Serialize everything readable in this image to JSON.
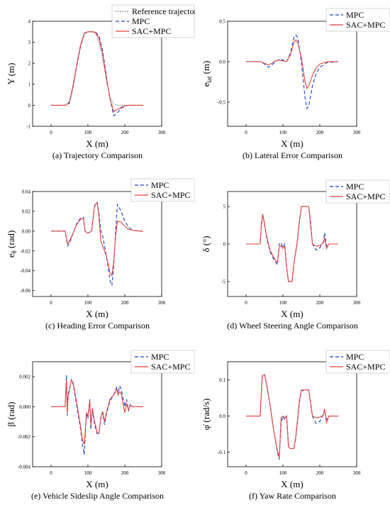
{
  "colors": {
    "reference": "#555555",
    "mpc": "#1f3fd6",
    "sac": "#e8413a"
  },
  "chart_data": [
    {
      "type": "line",
      "caption": "(a) Trajectory Comparison",
      "xlabel": "X (m)",
      "ylabel": "Y (m)",
      "xlim": [
        -50,
        300
      ],
      "ylim": [
        -1,
        4
      ],
      "xticks": [
        0,
        100,
        200,
        300
      ],
      "xtick_labels": [
        "0",
        "100",
        "200",
        "300"
      ],
      "yticks": [
        -1,
        0,
        1,
        2,
        3,
        4
      ],
      "ytick_labels": [
        "-1",
        "0",
        "1",
        "2",
        "3",
        "4"
      ],
      "legend": "top-right",
      "series": [
        {
          "name": "Reference trajectory",
          "style": "dotted",
          "color": "#555555",
          "x": [
            0,
            40,
            50,
            60,
            70,
            80,
            90,
            100,
            110,
            120,
            130,
            140,
            150,
            160,
            170,
            180,
            200,
            250
          ],
          "y": [
            0,
            0,
            0.2,
            1.0,
            2.0,
            2.9,
            3.45,
            3.5,
            3.5,
            3.45,
            3.0,
            2.2,
            1.2,
            0.4,
            0.05,
            0,
            0,
            0
          ]
        },
        {
          "name": "MPC",
          "style": "dashed",
          "color": "#1f3fd6",
          "x": [
            0,
            40,
            50,
            60,
            70,
            80,
            90,
            100,
            110,
            120,
            130,
            140,
            150,
            160,
            170,
            180,
            190,
            200,
            210,
            250
          ],
          "y": [
            0,
            0,
            0.1,
            0.9,
            1.9,
            2.8,
            3.4,
            3.5,
            3.5,
            3.5,
            3.3,
            2.6,
            1.4,
            0.3,
            -0.5,
            -0.35,
            -0.15,
            -0.05,
            0,
            0
          ]
        },
        {
          "name": "SAC+MPC",
          "style": "solid",
          "color": "#e8413a",
          "x": [
            0,
            40,
            50,
            60,
            70,
            80,
            90,
            100,
            110,
            120,
            130,
            140,
            150,
            160,
            170,
            180,
            190,
            200,
            210,
            250
          ],
          "y": [
            0,
            0,
            0.15,
            0.95,
            1.95,
            2.85,
            3.42,
            3.5,
            3.5,
            3.48,
            3.2,
            2.45,
            1.3,
            0.3,
            -0.3,
            -0.2,
            -0.1,
            -0.03,
            0,
            0
          ]
        }
      ]
    },
    {
      "type": "line",
      "caption": "(b) Lateral Error Comparison",
      "xlabel": "X (m)",
      "ylabel": "e_lat (m)",
      "ylabel_main": "e",
      "ylabel_sub": "lat",
      "ylabel_unit": " (m)",
      "xlim": [
        -50,
        300
      ],
      "ylim": [
        -0.8,
        0.5
      ],
      "xticks": [
        0,
        100,
        200,
        300
      ],
      "xtick_labels": [
        "0",
        "100",
        "200",
        "300"
      ],
      "yticks": [
        -0.5,
        0,
        0.5
      ],
      "ytick_labels": [
        "-0.5",
        "0.0",
        "0.5"
      ],
      "legend": "top-right",
      "series": [
        {
          "name": "MPC",
          "style": "dashed",
          "color": "#1f3fd6",
          "x": [
            0,
            40,
            50,
            60,
            70,
            80,
            90,
            100,
            110,
            120,
            130,
            135,
            140,
            150,
            160,
            165,
            170,
            180,
            190,
            200,
            220,
            250
          ],
          "y": [
            0,
            0,
            -0.03,
            -0.07,
            -0.04,
            0.0,
            0.03,
            0.02,
            0.0,
            0.1,
            0.3,
            0.33,
            0.3,
            0.0,
            -0.45,
            -0.58,
            -0.55,
            -0.3,
            -0.15,
            -0.07,
            -0.01,
            0
          ]
        },
        {
          "name": "SAC+MPC",
          "style": "solid",
          "color": "#e8413a",
          "x": [
            0,
            40,
            50,
            60,
            70,
            80,
            90,
            100,
            110,
            120,
            130,
            135,
            140,
            150,
            160,
            165,
            170,
            180,
            190,
            200,
            220,
            250
          ],
          "y": [
            0,
            0,
            -0.02,
            -0.04,
            -0.02,
            0.01,
            0.02,
            0.01,
            0.0,
            0.08,
            0.24,
            0.27,
            0.24,
            0.05,
            -0.25,
            -0.33,
            -0.3,
            -0.17,
            -0.08,
            -0.03,
            0,
            0
          ]
        }
      ]
    },
    {
      "type": "line",
      "caption": "(c) Heading Error Comparison",
      "xlabel": "X (m)",
      "ylabel": "e_θ (rad)",
      "ylabel_main": "e",
      "ylabel_sub": "θ",
      "ylabel_unit": " (rad)",
      "xlim": [
        -50,
        300
      ],
      "ylim": [
        -0.066,
        0.04
      ],
      "xticks": [
        0,
        100,
        200,
        300
      ],
      "xtick_labels": [
        "0",
        "100",
        "200",
        "300"
      ],
      "yticks": [
        -0.06,
        -0.04,
        -0.02,
        0,
        0.02,
        0.04
      ],
      "ytick_labels": [
        "-0.06",
        "-0.04",
        "-0.02",
        "0.00",
        "0.02",
        "0.04"
      ],
      "legend": "top-right",
      "series": [
        {
          "name": "MPC",
          "style": "dashed",
          "color": "#1f3fd6",
          "x": [
            0,
            38,
            45,
            50,
            60,
            70,
            80,
            88,
            92,
            100,
            110,
            118,
            125,
            130,
            135,
            140,
            150,
            160,
            165,
            170,
            175,
            180,
            190,
            200,
            210,
            220,
            240,
            250
          ],
          "y": [
            0,
            0,
            -0.015,
            -0.012,
            -0.002,
            0.008,
            0.013,
            0.014,
            0.0,
            -0.002,
            0.0,
            0.025,
            0.029,
            0.018,
            0.0,
            -0.005,
            -0.025,
            -0.05,
            -0.055,
            -0.035,
            0.0,
            0.027,
            0.02,
            0.01,
            0.004,
            0.001,
            0,
            0
          ]
        },
        {
          "name": "SAC+MPC",
          "style": "solid",
          "color": "#e8413a",
          "x": [
            0,
            38,
            45,
            50,
            60,
            70,
            80,
            88,
            92,
            100,
            110,
            118,
            125,
            130,
            135,
            140,
            150,
            160,
            165,
            170,
            175,
            180,
            190,
            200,
            210,
            220,
            240,
            250
          ],
          "y": [
            0,
            0,
            -0.013,
            -0.01,
            -0.002,
            0.007,
            0.012,
            0.013,
            0.0,
            -0.002,
            0.0,
            0.026,
            0.029,
            0.015,
            -0.01,
            -0.015,
            -0.025,
            -0.042,
            -0.045,
            -0.03,
            -0.005,
            0.01,
            0.009,
            0.005,
            0.002,
            0.001,
            0,
            0
          ]
        }
      ]
    },
    {
      "type": "line",
      "caption": "(d) Wheel Steering Angle Comparison",
      "xlabel": "X (m)",
      "ylabel": "δ (°)",
      "xlim": [
        -50,
        300
      ],
      "ylim": [
        -7,
        7
      ],
      "xticks": [
        0,
        100,
        200,
        300
      ],
      "xtick_labels": [
        "0",
        "100",
        "200",
        "300"
      ],
      "yticks": [
        -5,
        0,
        5
      ],
      "ytick_labels": [
        "-5",
        "0",
        "5"
      ],
      "legend": "top-right",
      "series": [
        {
          "name": "MPC",
          "style": "dashed",
          "color": "#1f3fd6",
          "x": [
            0,
            38,
            42,
            45,
            48,
            55,
            65,
            75,
            85,
            90,
            95,
            100,
            105,
            110,
            115,
            120,
            125,
            130,
            138,
            145,
            150,
            160,
            170,
            175,
            180,
            190,
            200,
            210,
            213,
            218,
            225,
            250
          ],
          "y": [
            0,
            0,
            2.5,
            3.8,
            3.2,
            1.0,
            -1.0,
            -2.0,
            -2.8,
            0.0,
            0.2,
            -0.5,
            0.0,
            -3.0,
            -5.0,
            -5.0,
            -5.0,
            -2.5,
            0.0,
            3.0,
            5.0,
            5.0,
            5.0,
            3.0,
            0.0,
            -0.8,
            -0.5,
            0.3,
            1.5,
            -0.3,
            0,
            0
          ]
        },
        {
          "name": "SAC+MPC",
          "style": "solid",
          "color": "#e8413a",
          "x": [
            0,
            38,
            42,
            45,
            48,
            55,
            65,
            75,
            85,
            90,
            95,
            100,
            105,
            110,
            115,
            120,
            125,
            130,
            138,
            145,
            150,
            160,
            170,
            175,
            180,
            190,
            200,
            210,
            213,
            218,
            225,
            250
          ],
          "y": [
            0,
            0,
            2.8,
            4.0,
            3.3,
            1.2,
            -0.8,
            -1.8,
            -2.5,
            -0.5,
            -0.2,
            -0.6,
            -0.3,
            -3.2,
            -5.0,
            -5.0,
            -5.0,
            -2.5,
            0.0,
            3.2,
            5.0,
            5.0,
            5.0,
            2.5,
            0.0,
            -0.3,
            -0.2,
            0.2,
            0.8,
            -0.6,
            0,
            0
          ]
        }
      ]
    },
    {
      "type": "line",
      "caption": "(e) Vehicle Sideslip Angle Comparison",
      "xlabel": "X (m)",
      "ylabel": "β (rad)",
      "xlim": [
        -50,
        300
      ],
      "ylim": [
        -0.004,
        0.003
      ],
      "xticks": [
        0,
        100,
        200,
        300
      ],
      "xtick_labels": [
        "0",
        "100",
        "200",
        "300"
      ],
      "yticks": [
        -0.004,
        -0.002,
        0,
        0.002
      ],
      "ytick_labels": [
        "-0.004",
        "-0.002",
        "0.000",
        "0.002"
      ],
      "legend": "top-right",
      "series": [
        {
          "name": "MPC",
          "style": "dashed",
          "color": "#1f3fd6",
          "x": [
            0,
            38,
            42,
            44,
            46,
            50,
            55,
            60,
            70,
            80,
            85,
            90,
            93,
            96,
            100,
            105,
            108,
            112,
            118,
            125,
            130,
            135,
            140,
            145,
            150,
            160,
            170,
            175,
            178,
            182,
            186,
            190,
            200,
            205,
            210,
            215,
            220,
            250
          ],
          "y": [
            0,
            0,
            0.0021,
            -0.0006,
            0.0008,
            0.0012,
            0.0018,
            0.0015,
            0.0,
            -0.0015,
            -0.0025,
            -0.0032,
            -0.0018,
            -0.0005,
            -0.0008,
            0.0005,
            -0.0015,
            -0.0002,
            -0.0012,
            -0.0018,
            -0.0017,
            -0.0008,
            -0.0004,
            -0.0012,
            -0.0005,
            0.0004,
            0.0008,
            0.0011,
            0.0013,
            0.0009,
            0.0014,
            0.0012,
            0.0,
            0.0005,
            -0.0003,
            0.0002,
            0,
            0
          ]
        },
        {
          "name": "SAC+MPC",
          "style": "solid",
          "color": "#e8413a",
          "x": [
            0,
            38,
            42,
            44,
            46,
            50,
            55,
            60,
            70,
            80,
            85,
            90,
            93,
            96,
            100,
            105,
            108,
            112,
            118,
            125,
            130,
            135,
            140,
            145,
            150,
            160,
            170,
            175,
            178,
            182,
            186,
            190,
            200,
            205,
            210,
            215,
            220,
            250
          ],
          "y": [
            0,
            0,
            0.0018,
            -0.0004,
            0.0006,
            0.0011,
            0.0018,
            0.0016,
            0.0002,
            -0.0013,
            -0.0022,
            -0.0025,
            -0.0015,
            -0.0004,
            -0.0006,
            0.0004,
            -0.0012,
            -0.0001,
            -0.001,
            -0.0017,
            -0.0018,
            -0.0007,
            -0.0003,
            -0.001,
            -0.0004,
            0.0005,
            0.0008,
            0.001,
            0.0012,
            0.0008,
            0.001,
            0.0009,
            -0.0004,
            0.0002,
            -0.0002,
            0.0001,
            0,
            0
          ]
        }
      ]
    },
    {
      "type": "line",
      "caption": "(f) Yaw Rate Comparison",
      "xlabel": "X (m)",
      "ylabel": "φ̇ (rad/s)",
      "ylabel_main": "φ̇",
      "ylabel_unit": " (rad/s)",
      "xlim": [
        -50,
        300
      ],
      "ylim": [
        -0.14,
        0.15
      ],
      "xticks": [
        0,
        100,
        200,
        300
      ],
      "xtick_labels": [
        "0",
        "100",
        "200",
        "300"
      ],
      "yticks": [
        -0.1,
        0,
        0.1
      ],
      "ytick_labels": [
        "-0.1",
        "0.0",
        "0.1"
      ],
      "legend": "top-right",
      "series": [
        {
          "name": "MPC",
          "style": "dashed",
          "color": "#1f3fd6",
          "x": [
            0,
            38,
            44,
            50,
            55,
            65,
            75,
            85,
            90,
            95,
            100,
            105,
            110,
            115,
            120,
            125,
            130,
            135,
            140,
            145,
            150,
            160,
            170,
            175,
            180,
            190,
            200,
            210,
            213,
            218,
            225,
            250
          ],
          "y": [
            0,
            0,
            0.11,
            0.115,
            0.09,
            0.03,
            -0.04,
            -0.1,
            -0.12,
            -0.02,
            0.0,
            -0.01,
            0.0,
            -0.08,
            -0.09,
            -0.09,
            -0.09,
            -0.06,
            -0.01,
            0.04,
            0.07,
            0.072,
            0.072,
            0.04,
            0.0,
            -0.02,
            -0.015,
            0.005,
            0.018,
            -0.01,
            0,
            0
          ]
        },
        {
          "name": "SAC+MPC",
          "style": "solid",
          "color": "#e8413a",
          "x": [
            0,
            38,
            44,
            50,
            55,
            65,
            75,
            85,
            90,
            95,
            100,
            105,
            110,
            115,
            120,
            125,
            130,
            135,
            140,
            145,
            150,
            160,
            170,
            175,
            180,
            190,
            200,
            210,
            213,
            218,
            225,
            250
          ],
          "y": [
            0,
            0,
            0.112,
            0.114,
            0.092,
            0.032,
            -0.04,
            -0.095,
            -0.115,
            -0.005,
            0.0,
            -0.005,
            0.0,
            -0.085,
            -0.09,
            -0.09,
            -0.09,
            -0.055,
            -0.005,
            0.045,
            0.072,
            0.072,
            0.072,
            0.035,
            0.0,
            -0.005,
            -0.003,
            0.003,
            0.02,
            -0.018,
            0,
            0
          ]
        }
      ]
    }
  ]
}
